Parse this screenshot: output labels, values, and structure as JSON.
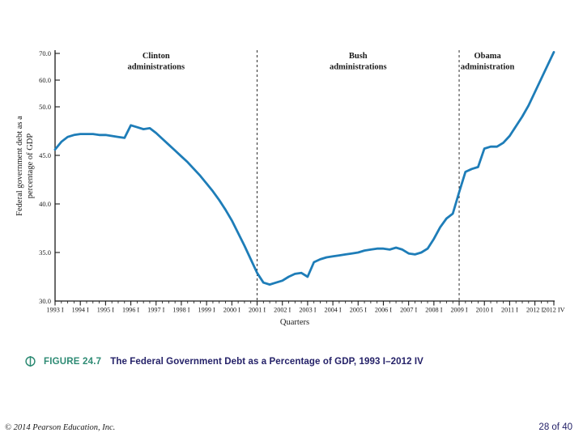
{
  "caption": {
    "figure_label": "FIGURE 24.7",
    "figure_title": "The Federal Government Debt as a Percentage of GDP, 1993 I–2012 IV"
  },
  "footer": {
    "copyright": "© 2014 Pearson Education, Inc.",
    "page_number": "28 of 40"
  },
  "colors": {
    "line": "#1E7DB8",
    "axis": "#1a1a1a",
    "figure_label_teal": "#2E8B74",
    "figure_title_navy": "#242168"
  },
  "chart_data": {
    "type": "line",
    "title": "",
    "xlabel": "Quarters",
    "ylabel_lines": [
      "Federal government debt as a",
      "percentage of GDP"
    ],
    "x_start": "1993 I",
    "x_end": "2012 IV",
    "frequency": "quarterly",
    "y_scale_note": "linear 30-50, compressed above 50 (60 and 70 at reduced spacing)",
    "y_ticks": [
      {
        "value": 30,
        "label": "30.0"
      },
      {
        "value": 35,
        "label": "35.0"
      },
      {
        "value": 40,
        "label": "40.0"
      },
      {
        "value": 45,
        "label": "45.0"
      },
      {
        "value": 50,
        "label": "50.0"
      },
      {
        "value": 60,
        "label": "60.0"
      },
      {
        "value": 70,
        "label": "70.0"
      }
    ],
    "x_tick_labels": [
      "1993 I",
      "1994 I",
      "1995 I",
      "1996 I",
      "1997 I",
      "1998 I",
      "1999 I",
      "2000 I",
      "2001 I",
      "2002 I",
      "2003 I",
      "2004 I",
      "2005 I",
      "2006 I",
      "2007 I",
      "2008 I",
      "2009 I",
      "2010 I",
      "2011 I",
      "2012 I",
      "2012 IV"
    ],
    "divider_quarter_indices": [
      32,
      64
    ],
    "annotations": [
      {
        "lines": [
          "Clinton",
          "administrations"
        ],
        "center_quarter_index": 16
      },
      {
        "lines": [
          "Bush",
          "administrations"
        ],
        "center_quarter_index": 48
      },
      {
        "lines": [
          "Obama",
          "administration"
        ],
        "center_quarter_index": 68.5
      }
    ],
    "series": [
      {
        "name": "Federal government debt as a percentage of GDP",
        "values": [
          45.6,
          46.4,
          46.9,
          47.1,
          47.2,
          47.2,
          47.2,
          47.1,
          47.1,
          47.0,
          46.9,
          46.8,
          48.1,
          47.9,
          47.7,
          47.8,
          47.3,
          46.7,
          46.1,
          45.5,
          44.9,
          44.3,
          43.6,
          42.9,
          42.1,
          41.3,
          40.4,
          39.4,
          38.3,
          37.0,
          35.7,
          34.3,
          32.9,
          31.9,
          31.7,
          31.9,
          32.1,
          32.5,
          32.8,
          32.9,
          32.5,
          34.0,
          34.3,
          34.5,
          34.6,
          34.7,
          34.8,
          34.9,
          35.0,
          35.2,
          35.3,
          35.4,
          35.4,
          35.3,
          35.5,
          35.3,
          34.9,
          34.8,
          35.0,
          35.4,
          36.4,
          37.6,
          38.5,
          39.0,
          41.2,
          43.3,
          43.6,
          43.8,
          45.7,
          45.9,
          45.9,
          46.3,
          47.0,
          48.0,
          49.0,
          50.5,
          55.5,
          60.5,
          65.5,
          70.5
        ]
      }
    ]
  }
}
